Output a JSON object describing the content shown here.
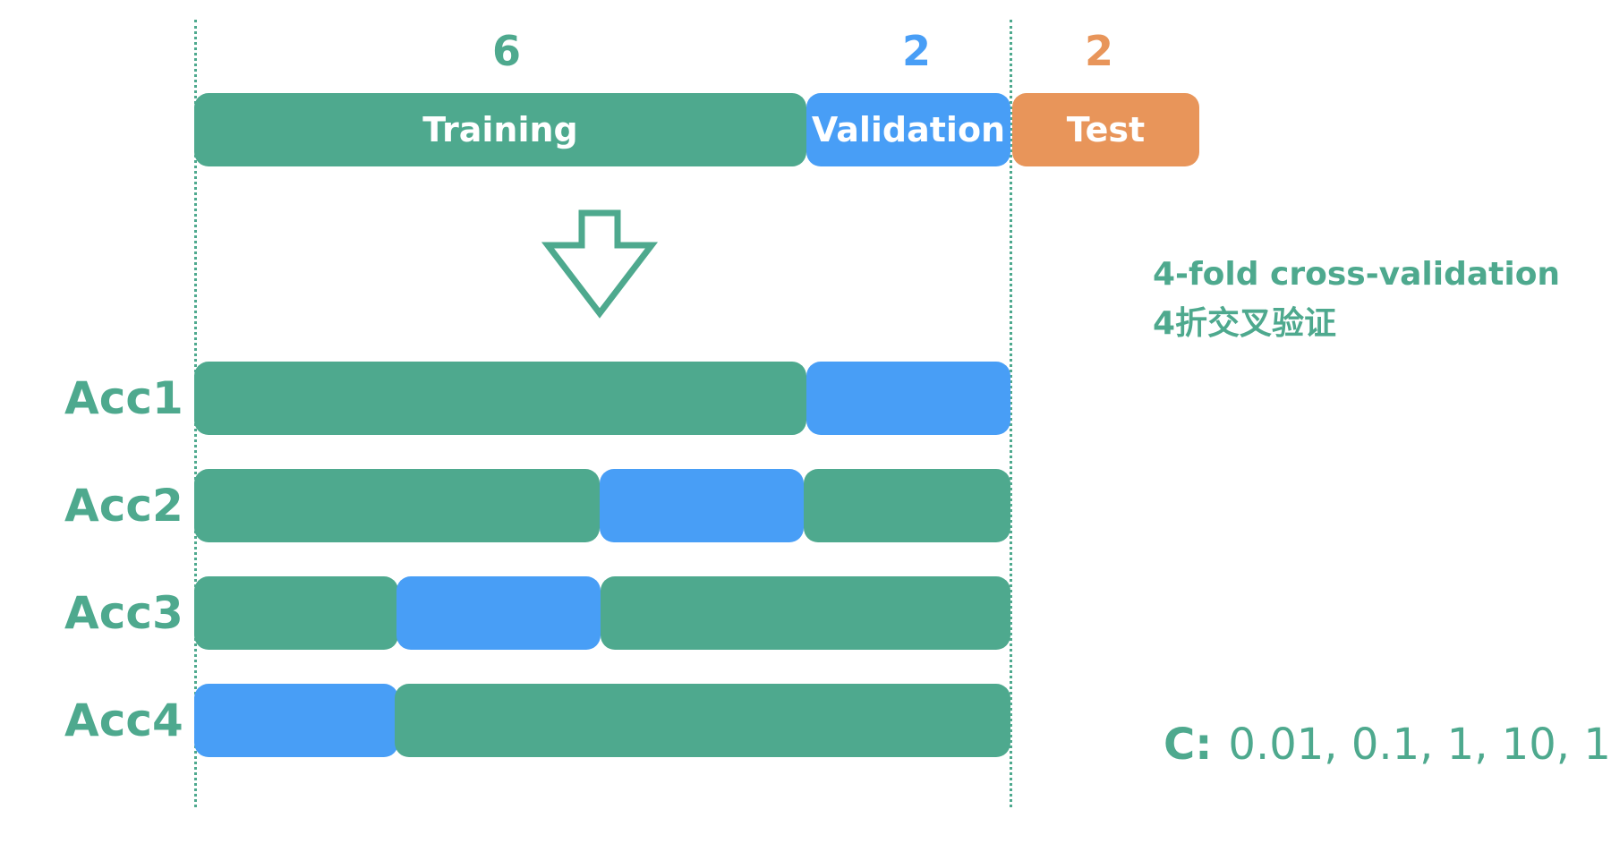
{
  "counts": {
    "training": "6",
    "validation": "2",
    "test": "2"
  },
  "colors": {
    "training": "#4ea98e",
    "validation": "#489ef6",
    "test": "#e8955a"
  },
  "top_bar": {
    "training_label": "Training",
    "validation_label": "Validation",
    "test_label": "Test"
  },
  "arrow_icon": "down-arrow-icon",
  "folds": [
    {
      "label": "Acc1"
    },
    {
      "label": "Acc2"
    },
    {
      "label": "Acc3"
    },
    {
      "label": "Acc4"
    }
  ],
  "note": {
    "english": "4-fold cross-validation",
    "chinese": "4折交叉验证"
  },
  "c_values": {
    "label": "C:",
    "values": "0.01, 0.1, 1, 10, 1"
  }
}
